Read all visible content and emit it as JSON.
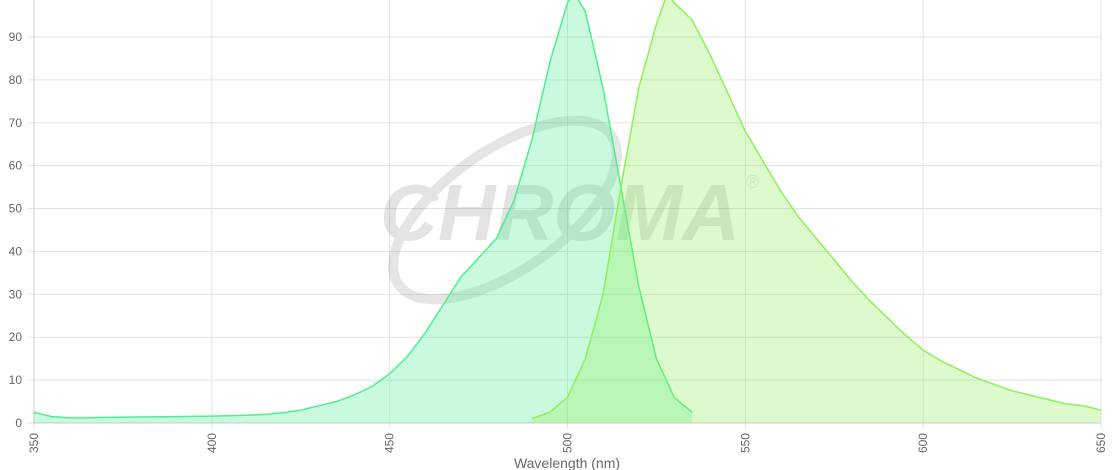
{
  "chart_data": {
    "type": "area",
    "xlabel": "Wavelength (nm)",
    "watermark": "CHROMA",
    "watermark_symbol": "®",
    "xlim": [
      350,
      650
    ],
    "xticks": [
      350,
      400,
      450,
      500,
      550,
      600,
      650
    ],
    "ylim": [
      0,
      100
    ],
    "yticks": [
      0,
      10,
      20,
      30,
      40,
      50,
      60,
      70,
      80,
      90
    ],
    "grid": true,
    "series": [
      {
        "color": "#4ef08e",
        "x": [
          350,
          355,
          360,
          365,
          370,
          380,
          390,
          400,
          410,
          415,
          420,
          425,
          430,
          435,
          440,
          445,
          450,
          455,
          460,
          465,
          470,
          475,
          480,
          485,
          490,
          495,
          500,
          502,
          505,
          510,
          515,
          520,
          525,
          530,
          535
        ],
        "values": [
          2.5,
          1.5,
          1.2,
          1.2,
          1.3,
          1.4,
          1.5,
          1.6,
          1.8,
          2,
          2.4,
          3,
          4,
          5,
          6.5,
          8.5,
          11.5,
          15.5,
          21,
          27.5,
          34,
          38.5,
          43,
          52,
          66,
          84,
          98,
          100,
          96,
          78,
          55,
          32,
          15,
          6,
          2.5
        ]
      },
      {
        "color": "#8ef05a",
        "x": [
          490,
          495,
          500,
          505,
          510,
          515,
          520,
          525,
          528,
          530,
          535,
          540,
          545,
          550,
          555,
          560,
          565,
          570,
          575,
          580,
          585,
          590,
          595,
          600,
          605,
          610,
          615,
          620,
          625,
          630,
          635,
          640,
          645,
          650
        ],
        "values": [
          1,
          2.5,
          6,
          15,
          30,
          55,
          78,
          93,
          100,
          98,
          94,
          86,
          77,
          68,
          61,
          54,
          48,
          43,
          38,
          33,
          28.5,
          24.5,
          20.5,
          17,
          14.5,
          12.5,
          10.5,
          9,
          7.5,
          6.5,
          5.5,
          4.5,
          4,
          3
        ]
      }
    ]
  }
}
